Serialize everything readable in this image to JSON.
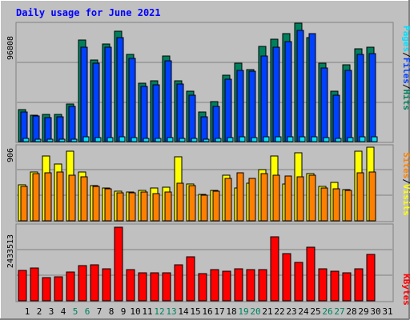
{
  "title": "Daily usage for June 2021",
  "colors": {
    "background": "#C0C0C0",
    "title": "#0000FF",
    "hits": "#00805C",
    "files": "#0040FF",
    "pages": "#00E0FF",
    "visits": "#FFFF00",
    "sites": "#FF8000",
    "kbytes": "#FF0000",
    "weekday_label": "#000000",
    "weekend_label": "#00805C",
    "separator": "#000000"
  },
  "chart_data": [
    {
      "type": "bar",
      "panel": "hits-files-pages",
      "categories": [
        "1",
        "2",
        "3",
        "4",
        "5",
        "6",
        "7",
        "8",
        "9",
        "10",
        "11",
        "12",
        "13",
        "14",
        "15",
        "16",
        "17",
        "18",
        "19",
        "20",
        "21",
        "22",
        "23",
        "24",
        "25",
        "26",
        "27",
        "28",
        "29",
        "30",
        "31"
      ],
      "y_tick_label": "96808",
      "ylim": [
        0,
        96808
      ],
      "series": [
        {
          "name": "Hits",
          "values": [
            26000,
            21500,
            22500,
            22000,
            31000,
            83000,
            67000,
            80000,
            90000,
            71000,
            48000,
            50000,
            70000,
            50000,
            41000,
            24000,
            33000,
            54000,
            64000,
            59000,
            78000,
            84000,
            88000,
            96808,
            85000,
            64000,
            41000,
            63000,
            76000,
            77000,
            0
          ]
        },
        {
          "name": "Files",
          "values": [
            24000,
            21000,
            19500,
            20000,
            28500,
            77000,
            64000,
            77000,
            85000,
            68000,
            45000,
            46500,
            66000,
            47000,
            38000,
            20500,
            29000,
            51000,
            58500,
            57500,
            70000,
            77000,
            82000,
            91000,
            88000,
            60000,
            38000,
            58000,
            71000,
            72000,
            0
          ]
        },
        {
          "name": "Pages",
          "values": [
            2400,
            2000,
            1800,
            2000,
            2200,
            3800,
            3200,
            3400,
            3600,
            3300,
            2800,
            2600,
            3200,
            2600,
            2600,
            2000,
            2400,
            3000,
            3600,
            3300,
            3800,
            3900,
            4000,
            4200,
            4000,
            3200,
            2600,
            3000,
            3600,
            3800,
            0
          ]
        }
      ],
      "axis_title": [
        {
          "text": "Pages",
          "color": "pages"
        },
        {
          "text": "/",
          "color": "separator"
        },
        {
          "text": "Files",
          "color": "files"
        },
        {
          "text": "/",
          "color": "separator"
        },
        {
          "text": "Hits",
          "color": "hits"
        }
      ]
    },
    {
      "type": "bar",
      "panel": "visits-sites",
      "categories": [
        "1",
        "2",
        "3",
        "4",
        "5",
        "6",
        "7",
        "8",
        "9",
        "10",
        "11",
        "12",
        "13",
        "14",
        "15",
        "16",
        "17",
        "18",
        "19",
        "20",
        "21",
        "22",
        "23",
        "24",
        "25",
        "26",
        "27",
        "28",
        "29",
        "30",
        "31"
      ],
      "y_tick_label": "906",
      "ylim": [
        0,
        906
      ],
      "series": [
        {
          "name": "Visits",
          "values": [
            440,
            590,
            790,
            690,
            850,
            590,
            430,
            400,
            360,
            350,
            370,
            400,
            410,
            780,
            450,
            320,
            370,
            560,
            400,
            460,
            620,
            790,
            450,
            830,
            570,
            420,
            470,
            380,
            850,
            900,
            0
          ]
        },
        {
          "name": "Sites",
          "values": [
            420,
            570,
            580,
            590,
            560,
            540,
            420,
            390,
            340,
            340,
            350,
            330,
            350,
            460,
            430,
            310,
            360,
            520,
            580,
            520,
            570,
            560,
            550,
            540,
            560,
            400,
            390,
            370,
            580,
            590,
            0
          ]
        }
      ],
      "axis_title": [
        {
          "text": "Sites",
          "color": "sites"
        },
        {
          "text": "/",
          "color": "separator"
        },
        {
          "text": "Visits",
          "color": "visits"
        }
      ]
    },
    {
      "type": "bar",
      "panel": "kbytes",
      "categories": [
        "1",
        "2",
        "3",
        "4",
        "5",
        "6",
        "7",
        "8",
        "9",
        "10",
        "11",
        "12",
        "13",
        "14",
        "15",
        "16",
        "17",
        "18",
        "19",
        "20",
        "21",
        "22",
        "23",
        "24",
        "25",
        "26",
        "27",
        "28",
        "29",
        "30",
        "31"
      ],
      "y_tick_label": "2433513",
      "ylim": [
        0,
        2433513
      ],
      "series": [
        {
          "name": "KBytes",
          "values": [
            1000000,
            1080000,
            760000,
            800000,
            940000,
            1160000,
            1200000,
            1070000,
            2433513,
            1020000,
            930000,
            930000,
            920000,
            1190000,
            1450000,
            900000,
            1020000,
            980000,
            1060000,
            1040000,
            1020000,
            2110000,
            1550000,
            1260000,
            1780000,
            1050000,
            980000,
            920000,
            1060000,
            1530000,
            0
          ]
        }
      ],
      "axis_title": [
        {
          "text": "KBytes",
          "color": "kbytes"
        }
      ]
    }
  ],
  "x_axis": {
    "labels": [
      "1",
      "2",
      "3",
      "4",
      "5",
      "6",
      "7",
      "8",
      "9",
      "10",
      "11",
      "12",
      "13",
      "14",
      "15",
      "16",
      "17",
      "18",
      "19",
      "20",
      "21",
      "22",
      "23",
      "24",
      "25",
      "26",
      "27",
      "28",
      "29",
      "30",
      "31"
    ],
    "weekend_days": [
      "5",
      "6",
      "12",
      "13",
      "19",
      "20",
      "26",
      "27"
    ]
  }
}
